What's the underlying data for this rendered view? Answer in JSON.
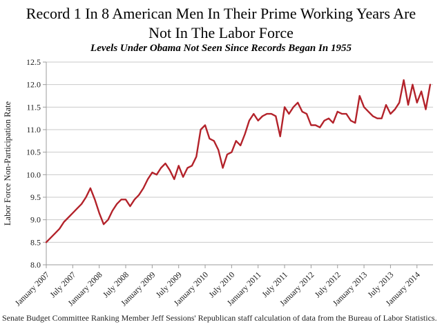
{
  "header": {
    "title_line1": "Record 1 In 8 American Men In Their Prime Working Years Are",
    "title_line2": "Not In The Labor Force",
    "subtitle": "Levels Under Obama Not Seen Since Records Began In 1955"
  },
  "footer": {
    "source": "Senate Budget Committee Ranking Member Jeff Sessions' Republican staff calculation of data from the Bureau of Labor Statistics."
  },
  "chart_data": {
    "type": "line",
    "title": "Record 1 In 8 American Men In Their Prime Working Years Are Not In The Labor Force",
    "subtitle": "Levels Under Obama Not Seen Since Records Began In 1955",
    "xlabel": "",
    "ylabel": "Labor Force Non-Participation Rate",
    "ylim": [
      8.0,
      12.5
    ],
    "grid": true,
    "legend": false,
    "line_color": "#B3222A",
    "grid_color": "#C9C9C9",
    "axis_color": "#9B9B9B",
    "text_color": "#1a1a1a",
    "yticks": [
      "8.0",
      "8.5",
      "9.0",
      "9.5",
      "10.0",
      "10.5",
      "11.0",
      "11.5",
      "12.0",
      "12.5"
    ],
    "xtick_labels": [
      "January 2007",
      "July 2007",
      "January 2008",
      "July 2008",
      "January 2009",
      "July 2009",
      "January 2010",
      "July 2010",
      "January 2011",
      "July 2011",
      "January 2012",
      "July 2012",
      "January 2013",
      "July 2013",
      "January 2014"
    ],
    "series": [
      {
        "name": "Labor Force Non-Participation Rate",
        "start_month": "January 2007",
        "frequency": "monthly",
        "values": [
          8.5,
          8.6,
          8.7,
          8.8,
          8.95,
          9.05,
          9.15,
          9.25,
          9.35,
          9.5,
          9.7,
          9.45,
          9.15,
          8.9,
          9.0,
          9.2,
          9.35,
          9.45,
          9.45,
          9.3,
          9.45,
          9.55,
          9.7,
          9.9,
          10.05,
          10.0,
          10.15,
          10.25,
          10.1,
          9.9,
          10.2,
          9.95,
          10.15,
          10.2,
          10.4,
          11.0,
          11.1,
          10.8,
          10.75,
          10.55,
          10.15,
          10.45,
          10.5,
          10.75,
          10.65,
          10.9,
          11.2,
          11.35,
          11.2,
          11.3,
          11.35,
          11.35,
          11.3,
          10.85,
          11.5,
          11.35,
          11.5,
          11.6,
          11.4,
          11.35,
          11.1,
          11.1,
          11.05,
          11.2,
          11.25,
          11.15,
          11.4,
          11.35,
          11.35,
          11.2,
          11.15,
          11.75,
          11.5,
          11.4,
          11.3,
          11.25,
          11.25,
          11.55,
          11.35,
          11.45,
          11.6,
          12.1,
          11.55,
          12.0,
          11.6,
          11.85,
          11.45,
          12.0
        ]
      }
    ]
  }
}
